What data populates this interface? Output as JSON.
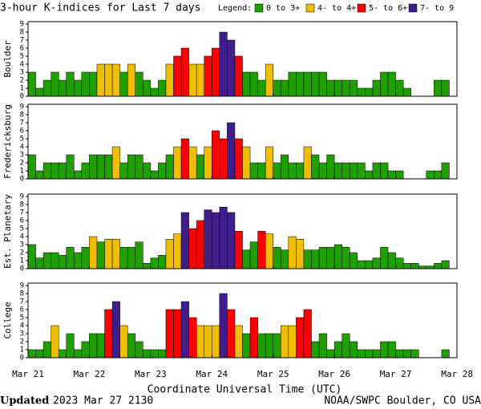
{
  "title": "3-hour K-indices for Last 7 days",
  "legend": {
    "title": "Legend:",
    "entries": [
      {
        "label": "0 to 3+",
        "color": "#1f9f00",
        "min": 0
      },
      {
        "label": "4- to 4+",
        "color": "#f0be00",
        "min": 3.67
      },
      {
        "label": "5- to 6+",
        "color": "#ff0000",
        "min": 4.67
      },
      {
        "label": "7- to 9",
        "color": "#3f1e8c",
        "min": 6.67
      }
    ]
  },
  "xaxis": {
    "labels": [
      "Mar 21",
      "Mar 22",
      "Mar 23",
      "Mar 24",
      "Mar 25",
      "Mar 26",
      "Mar 27",
      "Mar 28"
    ],
    "title": "Coordinate Universal Time (UTC)"
  },
  "footer": {
    "updated": "Updated",
    "time": "2023 Mar 27 2130",
    "source": "NOAA/SWPC Boulder, CO USA"
  },
  "chart_data": [
    {
      "type": "bar",
      "ylabel": "Boulder",
      "ylim": [
        0,
        9
      ],
      "yticks": [
        0,
        1,
        2,
        3,
        4,
        5,
        6,
        7,
        8,
        9
      ],
      "values": [
        3,
        1,
        2,
        3,
        2,
        3,
        2,
        3,
        3,
        4,
        4,
        4,
        3,
        4,
        3,
        2,
        1,
        2,
        4,
        5,
        6,
        4,
        4,
        5,
        6,
        8,
        7,
        5,
        3,
        3,
        2,
        4,
        2,
        2,
        3,
        3,
        3,
        3,
        3,
        2,
        2,
        2,
        2,
        1,
        1,
        2,
        3,
        3,
        2,
        1,
        0,
        0,
        0,
        2,
        2,
        0
      ]
    },
    {
      "type": "bar",
      "ylabel": "Fredericksburg",
      "ylim": [
        0,
        9
      ],
      "yticks": [
        0,
        1,
        2,
        3,
        4,
        5,
        6,
        7,
        8,
        9
      ],
      "values": [
        3,
        1,
        2,
        2,
        2,
        3,
        1,
        2,
        3,
        3,
        3,
        4,
        2,
        3,
        3,
        2,
        1,
        2,
        3,
        4,
        5,
        4,
        3,
        4,
        6,
        5,
        7,
        5,
        4,
        2,
        2,
        4,
        2,
        3,
        2,
        2,
        4,
        3,
        2,
        3,
        2,
        2,
        2,
        2,
        1,
        2,
        2,
        1,
        1,
        0,
        0,
        0,
        1,
        1,
        2,
        0
      ]
    },
    {
      "type": "bar",
      "ylabel": "Est. Planetary",
      "ylim": [
        0,
        9
      ],
      "yticks": [
        0,
        1,
        2,
        3,
        4,
        5,
        6,
        7,
        8,
        9
      ],
      "values": [
        3,
        1.33,
        2,
        2,
        1.67,
        2.67,
        2,
        2.67,
        4,
        3.33,
        3.67,
        3.67,
        2.67,
        2.67,
        3.33,
        0.67,
        1.33,
        1.67,
        3.67,
        4.33,
        7,
        5,
        6,
        7.33,
        7,
        7.67,
        7,
        4.67,
        2.33,
        3.33,
        4.67,
        4.33,
        2.67,
        2.33,
        4,
        3.67,
        2.33,
        2.33,
        2.67,
        2.67,
        3,
        2.67,
        2,
        1,
        1,
        1.33,
        2.67,
        2,
        1.33,
        0.67,
        0.67,
        0.33,
        0.33,
        0.67,
        1,
        null
      ]
    },
    {
      "type": "bar",
      "ylabel": "College",
      "ylim": [
        0,
        9
      ],
      "yticks": [
        0,
        1,
        2,
        3,
        4,
        5,
        6,
        7,
        8,
        9
      ],
      "values": [
        1,
        1,
        2,
        4,
        1,
        3,
        1,
        2,
        3,
        3,
        6,
        7,
        4,
        3,
        2,
        1,
        1,
        1,
        6,
        6,
        7,
        5,
        4,
        4,
        4,
        8,
        6,
        4,
        3,
        5,
        3,
        3,
        3,
        4,
        4,
        5,
        6,
        2,
        3,
        1,
        2,
        3,
        2,
        1,
        1,
        1,
        2,
        2,
        1,
        1,
        1,
        0,
        0,
        0,
        1,
        0
      ]
    }
  ]
}
